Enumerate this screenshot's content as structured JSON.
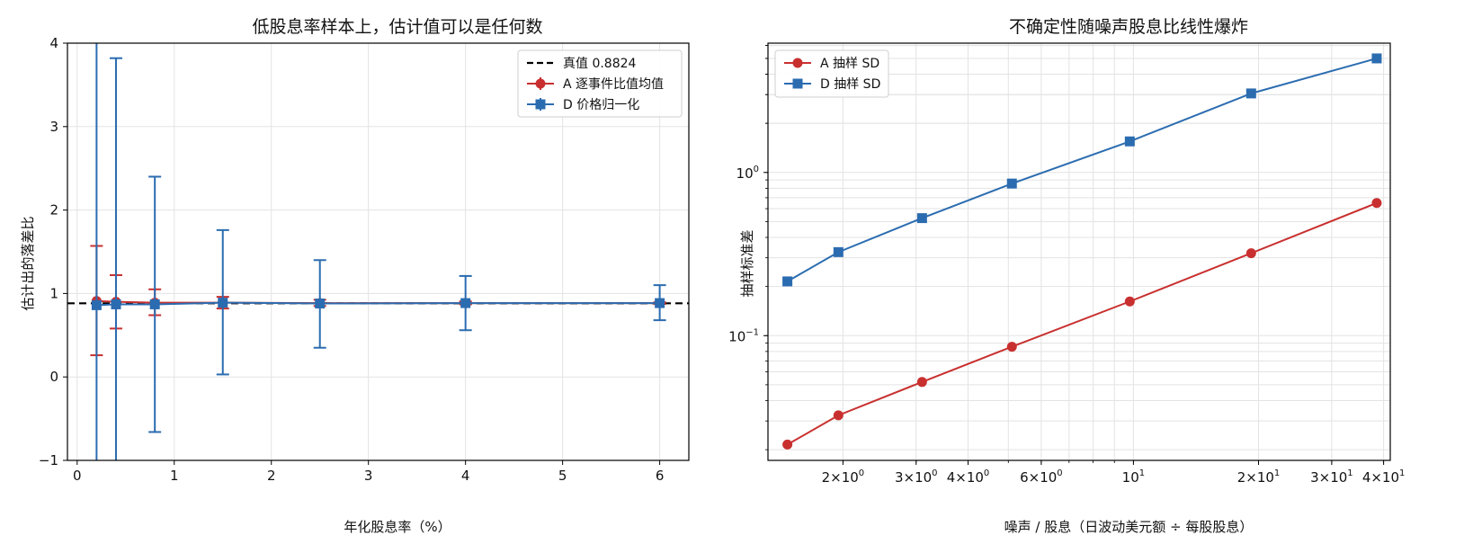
{
  "chart_data": [
    {
      "type": "line",
      "title": "低股息率样本上，估计值可以是任何数",
      "xlabel": "年化股息率（%）",
      "ylabel": "估计出的落差比",
      "xlim": [
        -0.1,
        6.3
      ],
      "ylim": [
        -1,
        4
      ],
      "xticks": [
        "0",
        "1",
        "2",
        "3",
        "4",
        "5",
        "6"
      ],
      "yticks": [
        "−1",
        "0",
        "1",
        "2",
        "3",
        "4"
      ],
      "grid": true,
      "legend": "top-right",
      "reference_line": {
        "label": "真值 0.8824",
        "value": 0.8824,
        "color": "#000000",
        "style": "dashed"
      },
      "x": [
        0.2,
        0.4,
        0.8,
        1.5,
        2.5,
        4.0,
        6.0
      ],
      "series": [
        {
          "name": "A 逐事件比值均值",
          "color": "#c8302f",
          "marker": "circle",
          "values": [
            0.91,
            0.9,
            0.89,
            0.89,
            0.885,
            0.885,
            0.885
          ],
          "err_low": [
            0.26,
            0.58,
            0.74,
            0.82,
            0.85,
            0.87,
            0.875
          ],
          "err_high": [
            1.57,
            1.22,
            1.05,
            0.96,
            0.925,
            0.905,
            0.895
          ]
        },
        {
          "name": "D 价格归一化",
          "color": "#2b6cb0",
          "marker": "square",
          "values": [
            0.86,
            0.87,
            0.87,
            0.89,
            0.88,
            0.885,
            0.885
          ],
          "err_low": [
            -1.3,
            -1.1,
            -0.66,
            0.03,
            0.35,
            0.56,
            0.68
          ],
          "err_high": [
            4.3,
            3.82,
            2.4,
            1.76,
            1.4,
            1.21,
            1.1
          ]
        }
      ]
    },
    {
      "type": "line",
      "title": "不确定性随噪声股息比线性爆炸",
      "xlabel": "噪声 / 股息（日波动美元额 ÷ 每股股息）",
      "ylabel": "抽样标准差",
      "xscale": "log",
      "yscale": "log",
      "xlim": [
        1.32,
        41.5
      ],
      "ylim": [
        0.0172,
        6.2
      ],
      "xticks": [
        {
          "value": 2,
          "label": "2×10",
          "exp": "0"
        },
        {
          "value": 3,
          "label": "3×10",
          "exp": "0"
        },
        {
          "value": 4,
          "label": "4×10",
          "exp": "0"
        },
        {
          "value": 6,
          "label": "6×10",
          "exp": "0"
        },
        {
          "value": 10,
          "label": "10",
          "exp": "1"
        },
        {
          "value": 20,
          "label": "2×10",
          "exp": "1"
        },
        {
          "value": 30,
          "label": "3×10",
          "exp": "1"
        },
        {
          "value": 40,
          "label": "4×10",
          "exp": "1"
        }
      ],
      "yticks": [
        {
          "value": 0.1,
          "label": "10",
          "exp": "−1"
        },
        {
          "value": 1,
          "label": "10",
          "exp": "0"
        }
      ],
      "grid": true,
      "legend": "top-left",
      "x": [
        1.47,
        1.95,
        3.1,
        5.1,
        9.8,
        19.2,
        38.5
      ],
      "series": [
        {
          "name": "A 抽样 SD",
          "color": "#c8302f",
          "marker": "circle",
          "values": [
            0.0215,
            0.0325,
            0.052,
            0.0855,
            0.162,
            0.32,
            0.65
          ]
        },
        {
          "name": "D 抽样 SD",
          "color": "#2b6cb0",
          "marker": "square",
          "values": [
            0.215,
            0.325,
            0.525,
            0.855,
            1.55,
            3.05,
            5.0
          ]
        }
      ]
    }
  ]
}
